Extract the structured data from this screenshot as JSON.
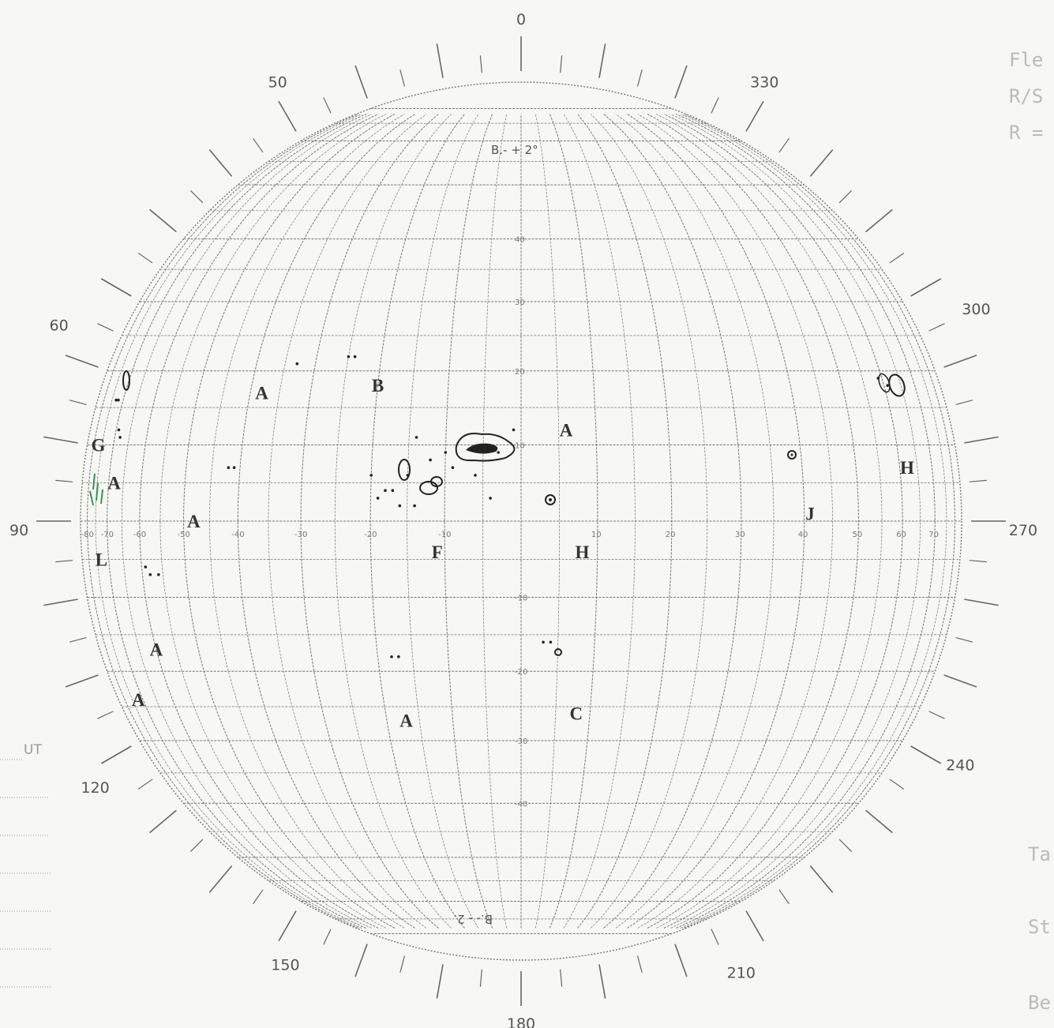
{
  "header": {
    "lines": [
      "Fle",
      "R/S",
      "R ="
    ]
  },
  "footer_right": [
    "Ta",
    "St",
    "Be"
  ],
  "ut_label": "UT",
  "orientation_top": "B.- + 2°",
  "orientation_bottom": "B.- - 2.",
  "position_angles": [
    {
      "text": "0",
      "angle": 0
    },
    {
      "text": "50",
      "angle": -29
    },
    {
      "text": "330",
      "angle": 29
    },
    {
      "text": "60",
      "angle": -67
    },
    {
      "text": "300",
      "angle": 65
    },
    {
      "text": "90",
      "angle": -91
    },
    {
      "text": "270",
      "angle": 91
    },
    {
      "text": "120",
      "angle": -122
    },
    {
      "text": "240",
      "angle": 119
    },
    {
      "text": "150",
      "angle": -152
    },
    {
      "text": "210",
      "angle": 154
    },
    {
      "text": "180",
      "angle": 180
    }
  ],
  "latitude_labels": [
    "40",
    "30",
    "20",
    "10",
    "-10",
    "-20",
    "-30",
    "-40"
  ],
  "longitude_labels": [
    "-80",
    "-70",
    "-60",
    "-50",
    "-40",
    "-30",
    "-20",
    "-10",
    "10",
    "20",
    "30",
    "40",
    "50",
    "60",
    "70"
  ],
  "region_tags": [
    {
      "text": "A",
      "lon": -38,
      "lat": 17
    },
    {
      "text": "B",
      "lon": -20,
      "lat": 18
    },
    {
      "text": "A",
      "lon": 6,
      "lat": 12
    },
    {
      "text": "G",
      "lon": -77,
      "lat": 10
    },
    {
      "text": "A",
      "lon": -68,
      "lat": 5
    },
    {
      "text": "A",
      "lon": -48,
      "lat": 0
    },
    {
      "text": "L",
      "lon": -73,
      "lat": -5
    },
    {
      "text": "F",
      "lon": -11,
      "lat": -4
    },
    {
      "text": "H",
      "lon": 8,
      "lat": -4
    },
    {
      "text": "J",
      "lon": 41,
      "lat": 1
    },
    {
      "text": "H",
      "lon": 62,
      "lat": 7
    },
    {
      "text": "A",
      "lon": -60,
      "lat": -17
    },
    {
      "text": "A",
      "lon": -72,
      "lat": -24
    },
    {
      "text": "A",
      "lon": -17,
      "lat": -27
    },
    {
      "text": "C",
      "lon": 8,
      "lat": -26
    }
  ]
}
